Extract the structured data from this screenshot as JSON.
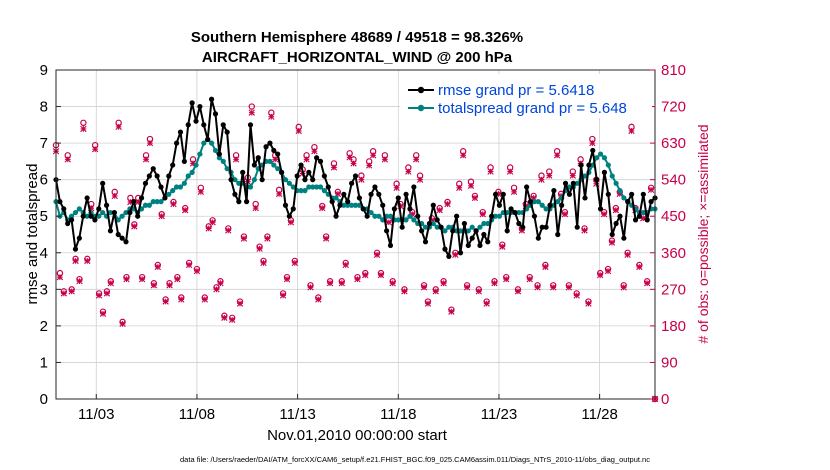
{
  "chart_data": {
    "type": "line",
    "title": "Southern Hemisphere 48689 / 49518 = 98.326%",
    "subtitle": "AIRCRAFT_HORIZONTAL_WIND @ 200 hPa",
    "xlabel": "Nov.01,2010 00:00:00 start",
    "ylabel": "rmse and totalspread",
    "ylabel_right": "# of obs: o=possible; ×=assimilated",
    "xlim": [
      1,
      30.75
    ],
    "ylim": [
      0,
      9
    ],
    "ylim_right": [
      0,
      810
    ],
    "x_tick_labels": [
      "11/03",
      "11/08",
      "11/13",
      "11/18",
      "11/23",
      "11/28"
    ],
    "x_tick_values": [
      3,
      8,
      13,
      18,
      23,
      28
    ],
    "y_ticks": [
      0,
      1,
      2,
      3,
      4,
      5,
      6,
      7,
      8,
      9
    ],
    "y_ticks_right": [
      0,
      90,
      180,
      270,
      360,
      450,
      540,
      630,
      720,
      810
    ],
    "legend_position": "top-right",
    "footnote": "data file: /Users/raeder/DAI/ATM_forcXX/CAM6_setup/f.e21.FHIST_BGC.f09_025.CAM6assim.011/Diags_NTrS_2010-11/obs_diag_output.nc",
    "colors": {
      "rmse": "#000000",
      "spread": "#008080",
      "obs": "#c8004c"
    },
    "series": [
      {
        "name": "rmse grand pr = 5.6418",
        "color": "#000000",
        "values": [
          6.0,
          5.4,
          5.2,
          4.8,
          4.9,
          4.1,
          4.4,
          5.0,
          5.5,
          5.0,
          4.9,
          5.2,
          5.9,
          5.3,
          4.6,
          5.1,
          4.5,
          4.4,
          4.3,
          5.1,
          5.4,
          5.0,
          5.5,
          5.9,
          6.1,
          6.3,
          6.1,
          5.8,
          5.5,
          6.1,
          6.4,
          7.0,
          7.3,
          6.5,
          7.5,
          8.1,
          7.6,
          8.0,
          7.5,
          7.1,
          8.2,
          7.8,
          6.7,
          7.5,
          7.3,
          6.0,
          5.6,
          5.4,
          6.2,
          5.4,
          7.5,
          6.4,
          6.6,
          6.0,
          6.9,
          7.0,
          6.8,
          6.7,
          6.2,
          5.3,
          5.0,
          5.2,
          6.1,
          6.4,
          6.0,
          6.2,
          6.0,
          6.6,
          6.5,
          6.1,
          5.8,
          5.4,
          5.0,
          5.3,
          5.6,
          5.4,
          5.9,
          6.1,
          5.5,
          5.2,
          5.0,
          5.6,
          5.8,
          5.6,
          5.3,
          4.6,
          4.2,
          5.2,
          5.5,
          4.7,
          5.6,
          5.2,
          5.8,
          5.0,
          4.6,
          4.3,
          4.8,
          5.3,
          4.9,
          4.7,
          4.1,
          3.9,
          4.6,
          5.0,
          4.0,
          4.8,
          4.2,
          4.4,
          4.6,
          4.2,
          4.5,
          4.3,
          5.0,
          5.6,
          5.3,
          5.6,
          4.6,
          5.2,
          5.1,
          4.8,
          4.7,
          5.8,
          5.4,
          5.0,
          4.4,
          4.7,
          4.7,
          5.3,
          5.7,
          4.5,
          5.3,
          5.9,
          5.6,
          5.9,
          4.7,
          6.4,
          5.5,
          6.4,
          6.8,
          6.0,
          5.2,
          6.2,
          5.6,
          4.5,
          4.8,
          5.0,
          4.4,
          5.4,
          5.6,
          4.9,
          5.0,
          5.6,
          4.9,
          5.4,
          5.5
        ]
      },
      {
        "name": "totalspread grand pr = 5.648",
        "color": "#008080",
        "values": [
          5.4,
          5.0,
          5.1,
          4.9,
          5.0,
          5.1,
          5.2,
          5.1,
          5.0,
          5.1,
          5.0,
          5.0,
          5.1,
          5.0,
          5.1,
          5.1,
          4.9,
          5.0,
          5.1,
          5.2,
          5.2,
          5.1,
          5.2,
          5.3,
          5.3,
          5.4,
          5.4,
          5.4,
          5.5,
          5.6,
          5.7,
          5.8,
          5.8,
          5.9,
          6.1,
          6.2,
          6.4,
          6.7,
          7.0,
          7.1,
          7.0,
          6.8,
          6.6,
          6.5,
          6.3,
          6.2,
          6.0,
          5.9,
          5.9,
          5.8,
          5.8,
          6.0,
          6.3,
          6.4,
          6.5,
          6.5,
          6.4,
          6.3,
          6.2,
          6.0,
          5.9,
          5.8,
          5.7,
          5.7,
          5.7,
          5.8,
          5.8,
          5.8,
          5.8,
          5.7,
          5.6,
          5.5,
          5.5,
          5.4,
          5.3,
          5.3,
          5.3,
          5.3,
          5.3,
          5.2,
          5.2,
          5.1,
          5.0,
          5.0,
          4.9,
          5.0,
          5.0,
          4.9,
          4.9,
          4.9,
          4.9,
          5.0,
          4.9,
          4.8,
          4.8,
          4.7,
          4.7,
          4.8,
          4.7,
          4.7,
          4.6,
          4.7,
          4.7,
          4.6,
          4.6,
          4.6,
          4.6,
          4.7,
          4.6,
          4.7,
          4.8,
          4.8,
          4.9,
          5.0,
          5.0,
          5.1,
          5.1,
          5.1,
          5.1,
          5.1,
          5.1,
          5.2,
          5.3,
          5.4,
          5.4,
          5.3,
          5.2,
          5.2,
          5.3,
          5.4,
          5.5,
          5.7,
          5.8,
          5.8,
          5.9,
          6.0,
          6.1,
          6.2,
          6.4,
          6.6,
          6.7,
          6.6,
          6.4,
          6.1,
          5.9,
          5.7,
          5.5,
          5.4,
          5.3,
          5.2,
          5.1,
          5.1,
          5.1,
          5.2,
          5.2
        ]
      },
      {
        "name": "obs possible",
        "color": "#c8004c",
        "values": [
          625,
          310,
          265,
          600,
          270,
          345,
          295,
          680,
          345,
          480,
          625,
          260,
          215,
          265,
          290,
          510,
          680,
          190,
          300,
          495,
          430,
          495,
          300,
          600,
          640,
          285,
          330,
          455,
          245,
          285,
          485,
          300,
          250,
          470,
          335,
          590,
          320,
          520,
          250,
          425,
          440,
          275,
          290,
          205,
          420,
          200,
          600,
          240,
          400,
          545,
          720,
          480,
          375,
          340,
          400,
          705,
          600,
          515,
          260,
          300,
          440,
          340,
          670,
          565,
          600,
          280,
          620,
          250,
          475,
          400,
          290,
          580,
          510,
          290,
          335,
          605,
          590,
          300,
          550,
          310,
          585,
          610,
          360,
          310,
          600,
          440,
          290,
          530,
          480,
          270,
          570,
          460,
          600,
          550,
          280,
          240,
          445,
          270,
          470,
          290,
          485,
          220,
          360,
          530,
          610,
          280,
          535,
          500,
          270,
          460,
          240,
          570,
          290,
          510,
          380,
          300,
          570,
          520,
          270,
          420,
          480,
          300,
          500,
          280,
          550,
          330,
          560,
          280,
          610,
          505,
          460,
          280,
          560,
          260,
          590,
          420,
          240,
          640,
          540,
          310,
          460,
          320,
          390,
          470,
          510,
          280,
          360,
          670,
          470,
          330,
          450,
          290,
          520,
          0
        ]
      },
      {
        "name": "obs assimilated",
        "color": "#c8004c",
        "values": [
          610,
          300,
          260,
          590,
          265,
          340,
          290,
          665,
          340,
          470,
          615,
          255,
          210,
          260,
          285,
          500,
          670,
          185,
          295,
          485,
          425,
          485,
          295,
          590,
          630,
          280,
          325,
          450,
          240,
          280,
          480,
          295,
          245,
          465,
          330,
          580,
          315,
          510,
          245,
          420,
          435,
          270,
          285,
          200,
          415,
          195,
          590,
          235,
          395,
          535,
          705,
          470,
          370,
          335,
          395,
          695,
          590,
          505,
          255,
          295,
          435,
          335,
          660,
          555,
          590,
          275,
          610,
          245,
          470,
          395,
          285,
          570,
          505,
          285,
          330,
          595,
          580,
          295,
          540,
          305,
          575,
          600,
          355,
          305,
          590,
          435,
          285,
          520,
          475,
          265,
          560,
          455,
          590,
          540,
          275,
          235,
          440,
          265,
          465,
          285,
          480,
          215,
          355,
          520,
          600,
          275,
          525,
          495,
          265,
          455,
          235,
          560,
          285,
          505,
          375,
          295,
          560,
          510,
          265,
          415,
          475,
          295,
          495,
          275,
          540,
          325,
          550,
          275,
          600,
          500,
          455,
          275,
          550,
          255,
          580,
          415,
          235,
          630,
          530,
          305,
          455,
          315,
          385,
          465,
          505,
          275,
          355,
          660,
          465,
          325,
          445,
          285,
          515,
          0
        ]
      }
    ]
  }
}
